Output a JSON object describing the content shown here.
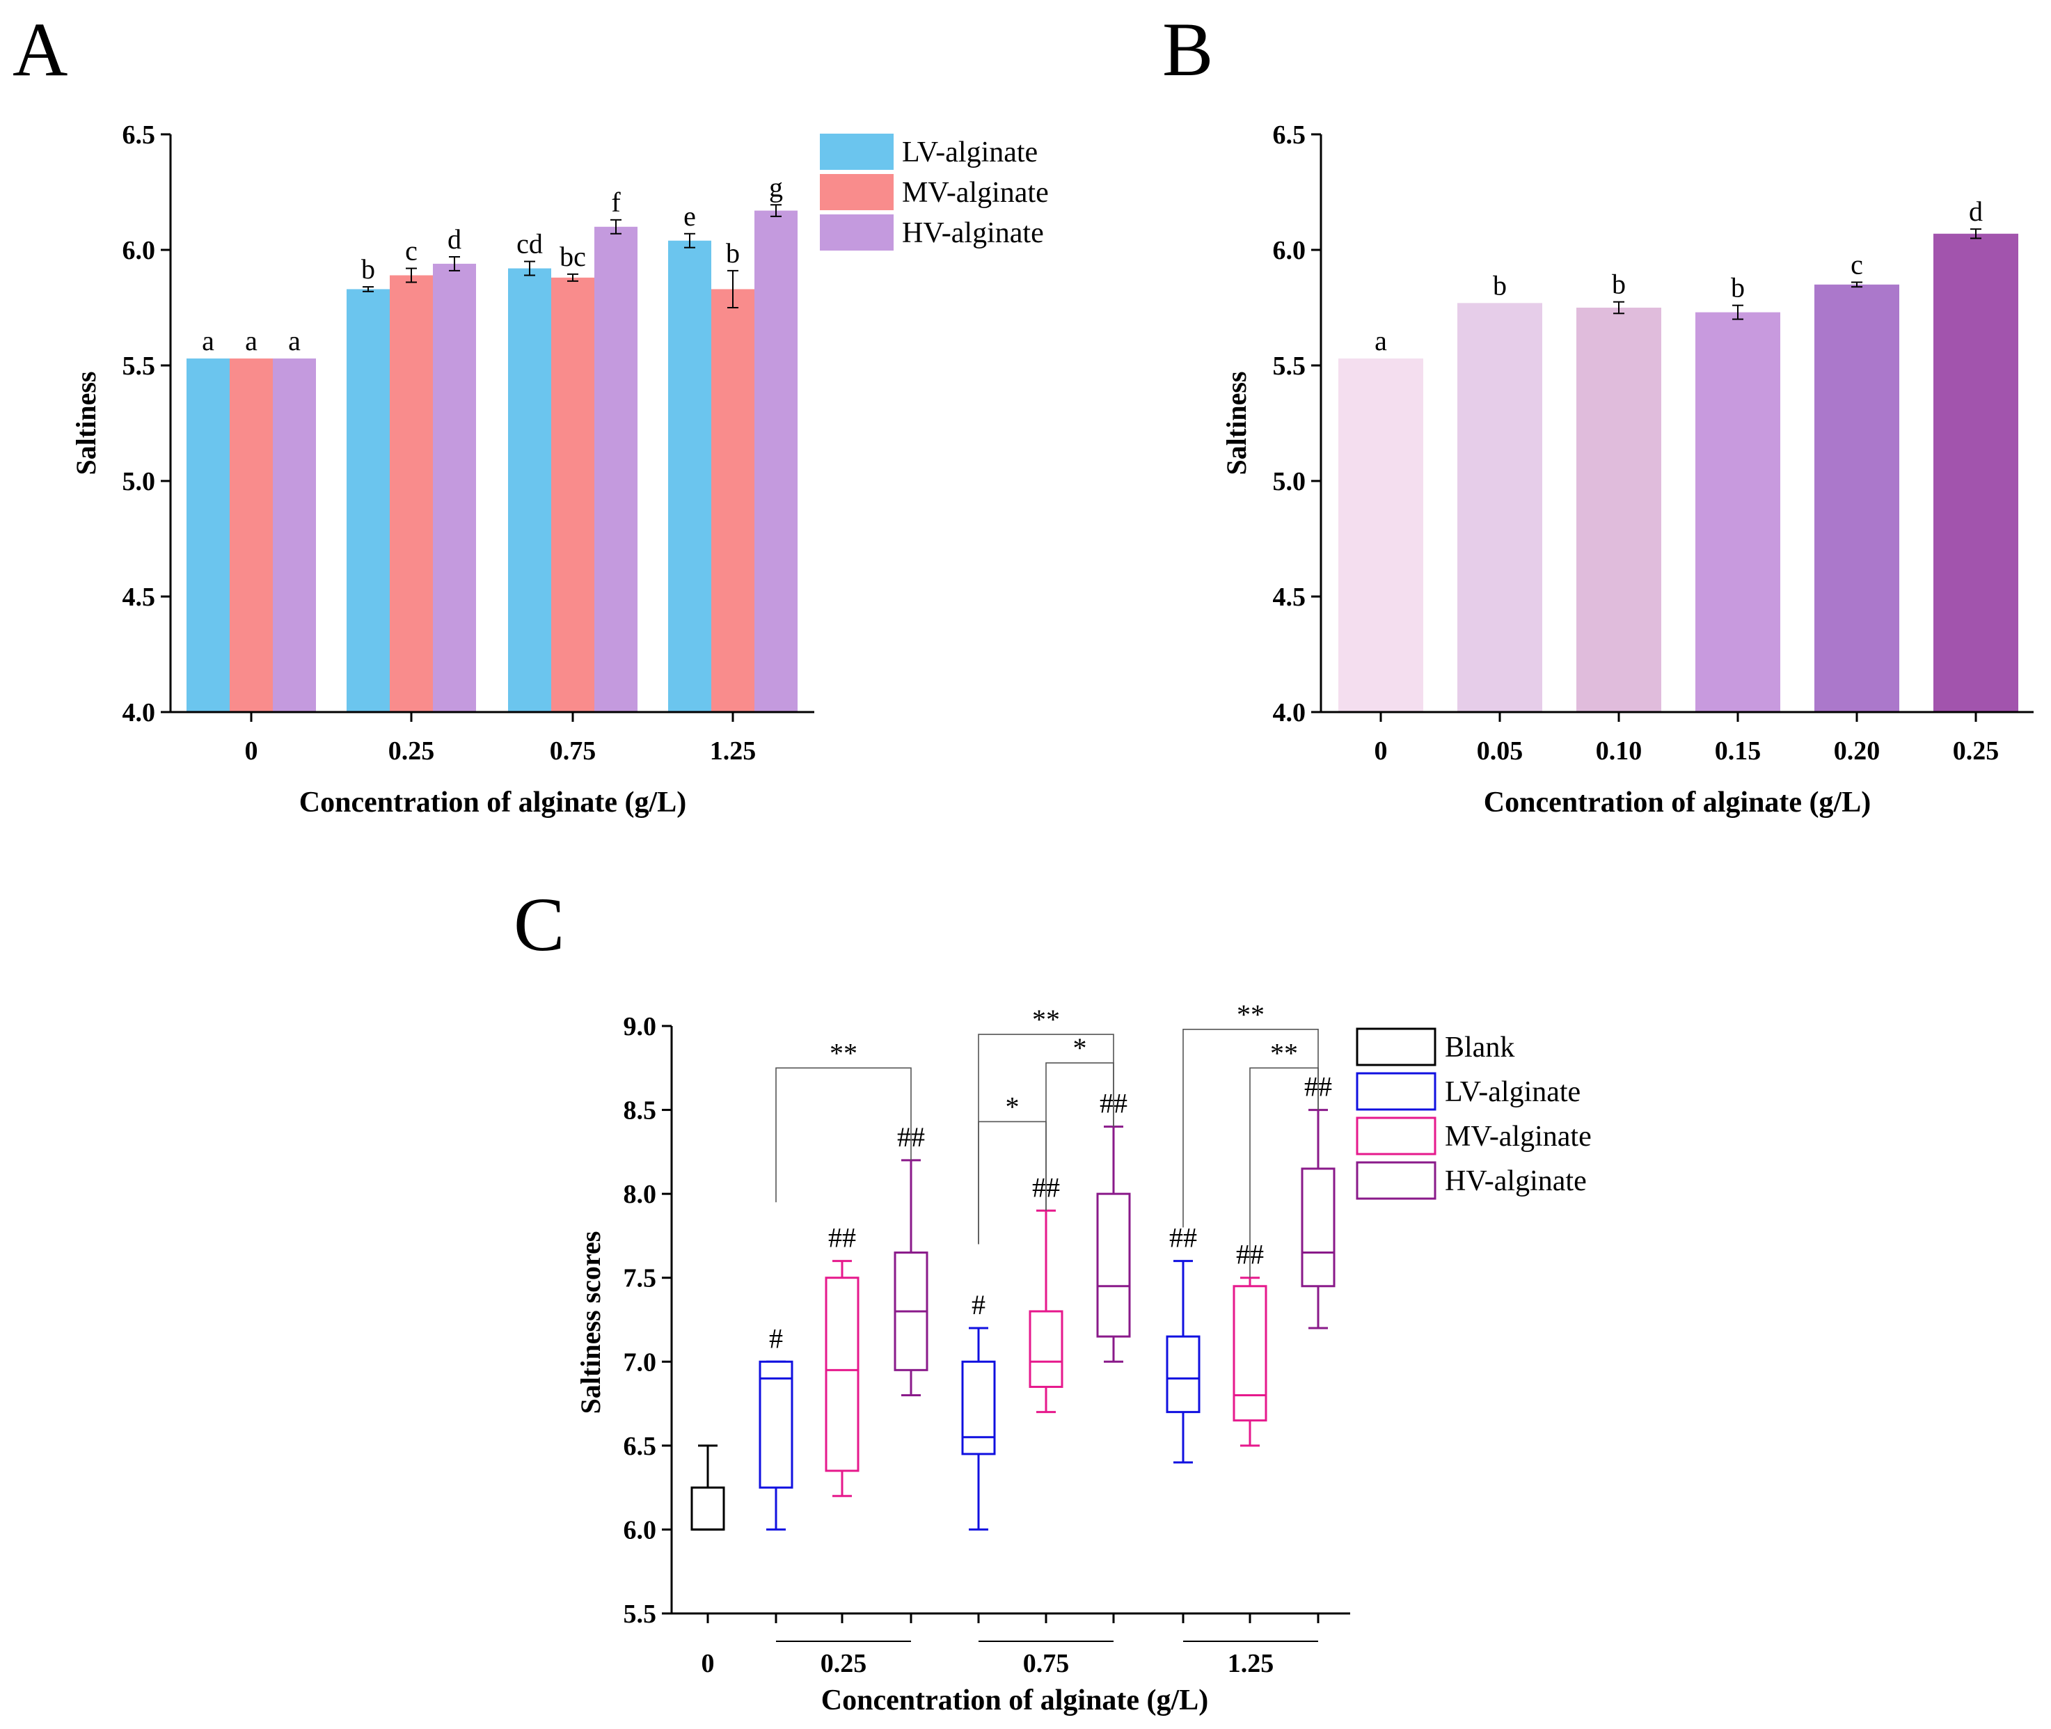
{
  "chart_data": [
    {
      "panel": "A",
      "type": "bar",
      "xlabel": "Concentration of alginate (g/L)",
      "ylabel": "Saltiness",
      "ylim": [
        4.0,
        6.5
      ],
      "yticks": [
        "4.0",
        "4.5",
        "5.0",
        "5.5",
        "6.0",
        "6.5"
      ],
      "categories": [
        "0",
        "0.25",
        "0.75",
        "1.25"
      ],
      "legend_position": "top-right",
      "series": [
        {
          "name": "LV-alginate",
          "color": "#6bc5ee",
          "values": [
            5.53,
            5.83,
            5.92,
            6.04
          ],
          "errors": [
            0,
            0.01,
            0.03,
            0.03
          ],
          "labels": [
            "a",
            "b",
            "cd",
            "e"
          ]
        },
        {
          "name": "MV-alginate",
          "color": "#f98c8c",
          "values": [
            5.53,
            5.89,
            5.88,
            5.83
          ],
          "errors": [
            0,
            0.03,
            0.015,
            0.08
          ],
          "labels": [
            "a",
            "c",
            "bc",
            "b"
          ]
        },
        {
          "name": "HV-alginate",
          "color": "#c49ade",
          "values": [
            5.53,
            5.94,
            6.1,
            6.17
          ],
          "errors": [
            0,
            0.03,
            0.03,
            0.025
          ],
          "labels": [
            "a",
            "d",
            "f",
            "g"
          ]
        }
      ]
    },
    {
      "panel": "B",
      "type": "bar",
      "xlabel": "Concentration of alginate (g/L)",
      "ylabel": "Saltiness",
      "ylim": [
        4.0,
        6.5
      ],
      "yticks": [
        "4.0",
        "4.5",
        "5.0",
        "5.5",
        "6.0",
        "6.5"
      ],
      "categories": [
        "0",
        "0.05",
        "0.10",
        "0.15",
        "0.20",
        "0.25"
      ],
      "values": [
        5.53,
        5.77,
        5.75,
        5.73,
        5.85,
        6.07
      ],
      "errors": [
        0,
        0,
        0.025,
        0.03,
        0.01,
        0.02
      ],
      "labels": [
        "a",
        "b",
        "b",
        "b",
        "c",
        "d"
      ],
      "colors": [
        "#f4deef",
        "#e6cde9",
        "#e0bcdc",
        "#c89ade",
        "#ab78cb",
        "#a254ad"
      ]
    },
    {
      "panel": "C",
      "type": "box",
      "xlabel": "Concentration of alginate (g/L)",
      "ylabel": "Saltiness scores",
      "ylim": [
        5.5,
        9.0
      ],
      "yticks": [
        "5.5",
        "6.0",
        "6.5",
        "7.0",
        "7.5",
        "8.0",
        "8.5",
        "9.0"
      ],
      "categories": [
        "0",
        "0.25",
        "0.75",
        "1.25"
      ],
      "legend": [
        {
          "name": "Blank",
          "color": "#000000"
        },
        {
          "name": "LV-alginate",
          "color": "#1010e0"
        },
        {
          "name": "MV-alginate",
          "color": "#e6198c"
        },
        {
          "name": "HV-alginate",
          "color": "#8a1a8a"
        }
      ],
      "boxes": [
        {
          "group": "0",
          "series": "Blank",
          "color": "#000000",
          "min": 6.0,
          "q1": 6.0,
          "median": 6.0,
          "q3": 6.25,
          "max": 6.5,
          "mark": ""
        },
        {
          "group": "0.25",
          "series": "LV-alginate",
          "color": "#1010e0",
          "min": 6.0,
          "q1": 6.25,
          "median": 6.9,
          "q3": 7.0,
          "max": 7.0,
          "mark": "#"
        },
        {
          "group": "0.25",
          "series": "MV-alginate",
          "color": "#e6198c",
          "min": 6.2,
          "q1": 6.35,
          "median": 6.95,
          "q3": 7.5,
          "max": 7.6,
          "mark": "##"
        },
        {
          "group": "0.25",
          "series": "HV-alginate",
          "color": "#8a1a8a",
          "min": 6.8,
          "q1": 6.95,
          "median": 7.3,
          "q3": 7.65,
          "max": 8.2,
          "mark": "##"
        },
        {
          "group": "0.75",
          "series": "LV-alginate",
          "color": "#1010e0",
          "min": 6.0,
          "q1": 6.45,
          "median": 6.55,
          "q3": 7.0,
          "max": 7.2,
          "mark": "#"
        },
        {
          "group": "0.75",
          "series": "MV-alginate",
          "color": "#e6198c",
          "min": 6.7,
          "q1": 6.85,
          "median": 7.0,
          "q3": 7.3,
          "max": 7.9,
          "mark": "##"
        },
        {
          "group": "0.75",
          "series": "HV-alginate",
          "color": "#8a1a8a",
          "min": 7.0,
          "q1": 7.15,
          "median": 7.45,
          "q3": 8.0,
          "max": 8.4,
          "mark": "##"
        },
        {
          "group": "1.25",
          "series": "LV-alginate",
          "color": "#1010e0",
          "min": 6.4,
          "q1": 6.7,
          "median": 6.9,
          "q3": 7.15,
          "max": 7.6,
          "mark": "##"
        },
        {
          "group": "1.25",
          "series": "MV-alginate",
          "color": "#e6198c",
          "min": 6.5,
          "q1": 6.65,
          "median": 6.8,
          "q3": 7.45,
          "max": 7.5,
          "mark": "##"
        },
        {
          "group": "1.25",
          "series": "HV-alginate",
          "color": "#8a1a8a",
          "min": 7.2,
          "q1": 7.45,
          "median": 7.65,
          "q3": 8.15,
          "max": 8.5,
          "mark": "##"
        }
      ],
      "brackets": [
        {
          "from": 1,
          "to": 3,
          "label": "**",
          "level": 8.75,
          "left_end": 7.95,
          "right_end": 8.2
        },
        {
          "from": 4,
          "to": 6,
          "label": "**",
          "level": 8.95,
          "left_end": 7.7,
          "right_end": 8.4
        },
        {
          "from": 5,
          "to": 6,
          "label": "*",
          "level": 8.78,
          "left_end": 7.9,
          "right_end": 8.4
        },
        {
          "from": 4,
          "to": 5,
          "label": "*",
          "level": 8.43,
          "left_end": 7.7,
          "right_end": 7.9
        },
        {
          "from": 7,
          "to": 9,
          "label": "**",
          "level": 8.98,
          "left_end": 7.8,
          "right_end": 8.5
        },
        {
          "from": 8,
          "to": 9,
          "label": "**",
          "level": 8.75,
          "left_end": 7.5,
          "right_end": 8.5
        }
      ]
    }
  ],
  "panel_labels": [
    "A",
    "B",
    "C"
  ]
}
